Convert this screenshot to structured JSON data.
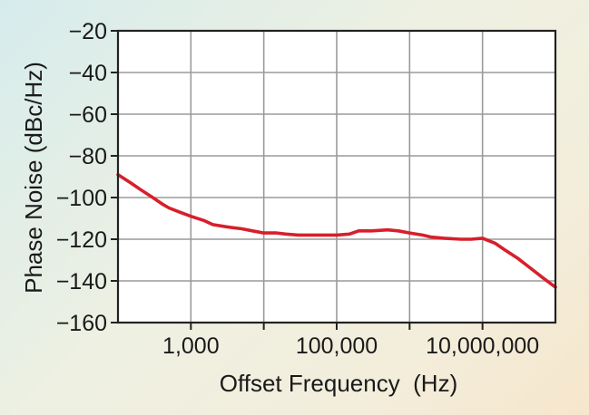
{
  "chart_data": {
    "type": "line",
    "xlabel": "Offset Frequency  (Hz)",
    "ylabel": "Phase Noise (dBc/Hz)",
    "xscale": "log",
    "xlim": [
      100,
      100000000
    ],
    "ylim": [
      -160,
      -20
    ],
    "grid": true,
    "x_ticks": [
      {
        "value": 1000,
        "label": "1,000"
      },
      {
        "value": 100000,
        "label": "100,000"
      },
      {
        "value": 10000000,
        "label": "10,000,000"
      }
    ],
    "x_gridlines": [
      1000,
      10000,
      100000,
      1000000,
      10000000
    ],
    "y_ticks": [
      {
        "value": -20,
        "label": "−20"
      },
      {
        "value": -40,
        "label": "−40"
      },
      {
        "value": -60,
        "label": "−60"
      },
      {
        "value": -80,
        "label": "−80"
      },
      {
        "value": -100,
        "label": "−100"
      },
      {
        "value": -120,
        "label": "−120"
      },
      {
        "value": -140,
        "label": "−140"
      },
      {
        "value": -160,
        "label": "−160"
      }
    ],
    "series": [
      {
        "color": "#d71f2b",
        "x": [
          100,
          150,
          200,
          300,
          400,
          500,
          700,
          1000,
          1500,
          2000,
          3000,
          5000,
          7000,
          10000,
          15000,
          20000,
          30000,
          50000,
          70000,
          100000,
          150000,
          200000,
          300000,
          500000,
          700000,
          1000000,
          1500000,
          2000000,
          3000000,
          5000000,
          7000000,
          10000000,
          15000000,
          20000000,
          30000000,
          50000000,
          70000000,
          100000000
        ],
        "y": [
          -89,
          -93,
          -96,
          -100,
          -103,
          -105,
          -107,
          -109,
          -111,
          -113,
          -114,
          -115,
          -116,
          -117,
          -117,
          -117.5,
          -118,
          -118,
          -118,
          -118,
          -117.5,
          -116,
          -116,
          -115.5,
          -116,
          -117,
          -118,
          -119,
          -119.5,
          -120,
          -120,
          -119.5,
          -122,
          -125,
          -129,
          -135,
          -139,
          -143
        ]
      }
    ]
  }
}
